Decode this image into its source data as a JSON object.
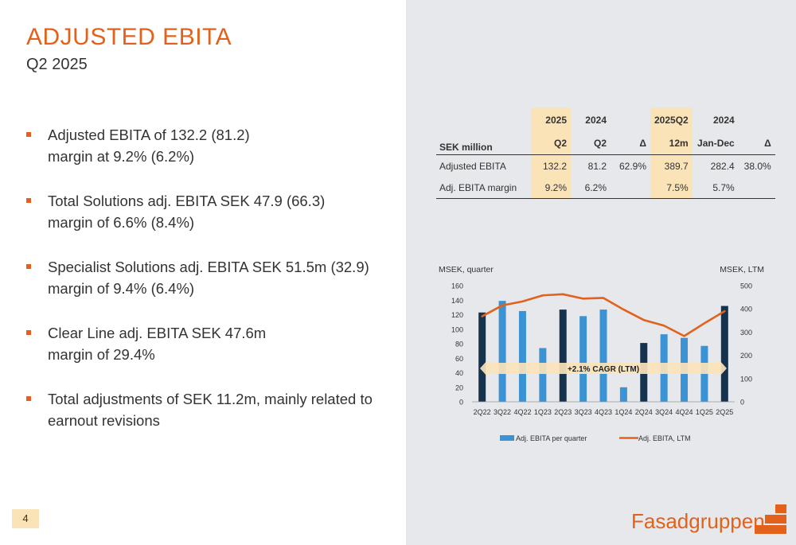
{
  "header": {
    "title": "ADJUSTED EBITA",
    "subtitle": "Q2 2025"
  },
  "bullets": [
    {
      "lines": [
        "Adjusted EBITA of 132.2 (81.2)",
        "margin at 9.2% (6.2%)"
      ]
    },
    {
      "lines": [
        "Total Solutions adj. EBITA SEK 47.9 (66.3)",
        "margin of 6.6% (8.4%)"
      ]
    },
    {
      "lines": [
        "Specialist Solutions adj. EBITA SEK 51.5m (32.9)",
        "margin of 9.4% (6.4%)"
      ]
    },
    {
      "lines": [
        "Clear Line adj. EBITA SEK 47.6m",
        "margin of 29.4%"
      ]
    },
    {
      "lines": [
        "Total adjustments of SEK 11.2m, mainly related to",
        "earnout revisions"
      ]
    }
  ],
  "table": {
    "header_row1": [
      "",
      "2025",
      "2024",
      "",
      "2025Q2",
      "2024",
      ""
    ],
    "header_row2": [
      "SEK million",
      "Q2",
      "Q2",
      "Δ",
      "12m",
      "Jan-Dec",
      "Δ"
    ],
    "rows": [
      [
        "Adjusted EBITA",
        "132.2",
        "81.2",
        "62.9%",
        "389.7",
        "282.4",
        "38.0%"
      ],
      [
        "Adj. EBITA margin",
        "9.2%",
        "6.2%",
        "",
        "7.5%",
        "5.7%",
        ""
      ]
    ]
  },
  "chart_data": {
    "type": "bar",
    "categories": [
      "2Q22",
      "3Q22",
      "4Q22",
      "1Q23",
      "2Q23",
      "3Q23",
      "4Q23",
      "1Q24",
      "2Q24",
      "3Q24",
      "4Q24",
      "1Q25",
      "2Q25"
    ],
    "series": [
      {
        "name": "Adj. EBITA per quarter",
        "type": "bar",
        "axis": "left",
        "values": [
          123,
          139,
          125,
          74,
          127,
          118,
          127,
          20,
          81,
          93,
          88,
          77,
          132
        ]
      },
      {
        "name": "Adj. EBITA, LTM",
        "type": "line",
        "axis": "right",
        "values": [
          368,
          415,
          432,
          458,
          463,
          444,
          447,
          397,
          352,
          328,
          283,
          338,
          390
        ]
      }
    ],
    "highlight_categories": [
      "2Q22",
      "2Q23",
      "2Q24",
      "2Q25"
    ],
    "ylabel_left": "MSEK, quarter",
    "ylabel_right": "MSEK, LTM",
    "ylim_left": [
      0,
      160
    ],
    "ylim_right": [
      0,
      500
    ],
    "yticks_left": [
      "0",
      "20",
      "40",
      "60",
      "80",
      "100",
      "120",
      "140",
      "160"
    ],
    "yticks_right": [
      "0",
      "100",
      "200",
      "300",
      "400",
      "500"
    ],
    "annotation": "+2.1% CAGR (LTM)",
    "legend": [
      "Adj. EBITA per quarter",
      "Adj. EBITA, LTM"
    ],
    "legend_position": "bottom",
    "grid": false,
    "colors": {
      "bar": "#3b93d4",
      "bar_highlight": "#15324f",
      "line": "#e2621c",
      "annotation_arrow": "#fbe3b8"
    }
  },
  "page": {
    "number": "4"
  },
  "logo": {
    "text": "Fasadgruppen"
  }
}
